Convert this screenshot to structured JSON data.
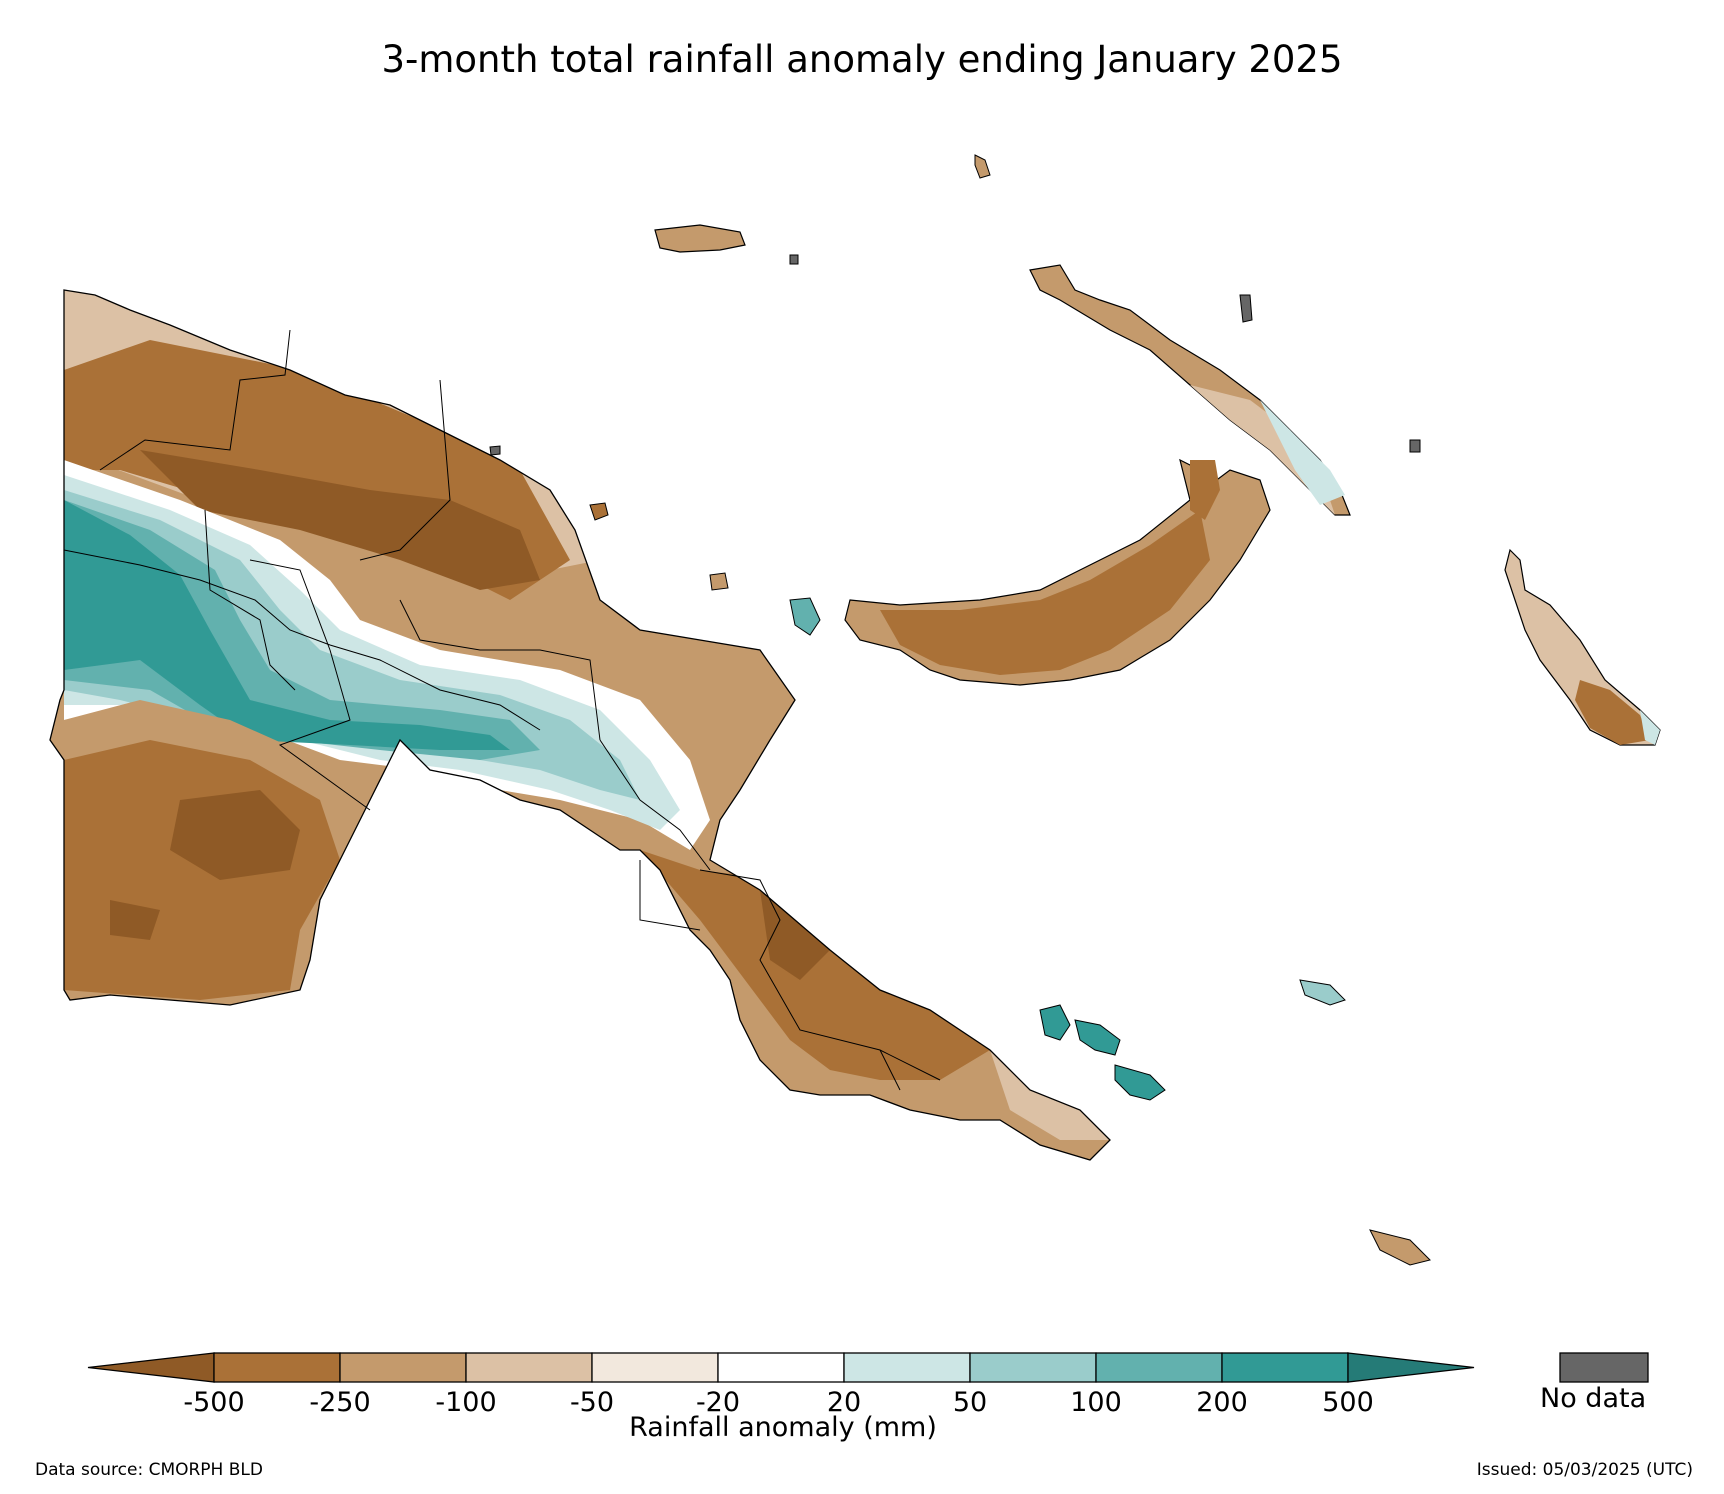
{
  "title": "3-month total rainfall anomaly ending January 2025",
  "colorbar": {
    "label": "Rainfall anomaly (mm)",
    "ticks": [
      "-500",
      "-250",
      "-100",
      "-50",
      "-20",
      "20",
      "50",
      "100",
      "200",
      "500"
    ],
    "colors": {
      "below_500": "#8f5a26",
      "r_500_250": "#aa7137",
      "r_250_100": "#c49a6c",
      "r_100_50": "#dcc1a5",
      "r_50_20": "#f2e8dd",
      "r_20_20": "#ffffff",
      "r_20_50": "#cde6e5",
      "r_50_100": "#9acccb",
      "r_100_200": "#62b1ae",
      "r_200_500": "#319a95",
      "above_500": "#257b77"
    },
    "nodata_color": "#666666",
    "nodata_label": "No data"
  },
  "footer": {
    "source": "Data source: CMORPH BLD",
    "issued": "Issued: 05/03/2025 (UTC)"
  }
}
